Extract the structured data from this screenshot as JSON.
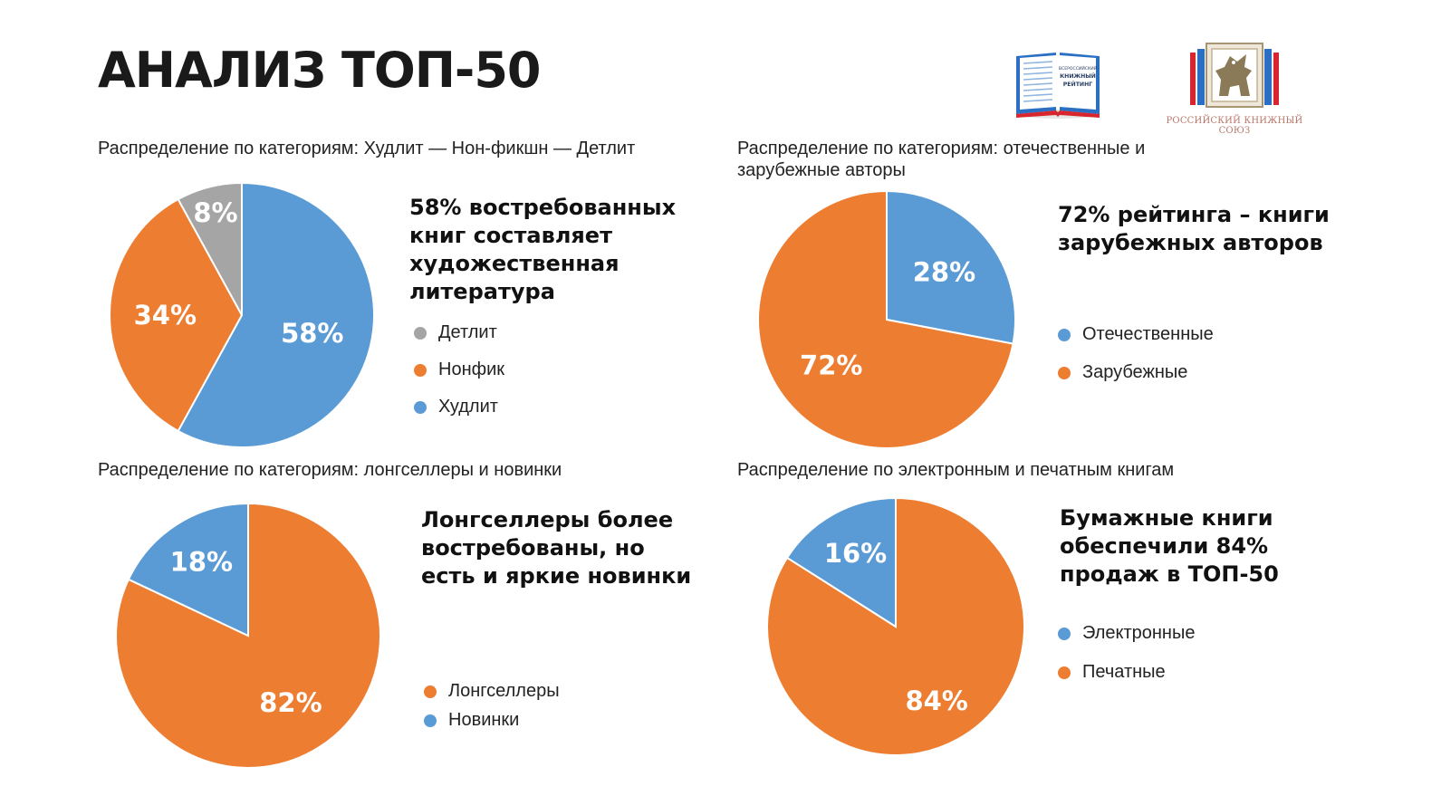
{
  "title": "АНАЛИЗ ТОП-50",
  "logos": {
    "rating_lines": [
      "ВСЕРОССИЙСКИЙ",
      "КНИЖНЫЙ",
      "РЕЙТИНГ"
    ],
    "union_caption": "РОССИЙСКИЙ КНИЖНЫЙ СОЮЗ"
  },
  "colors": {
    "blue": "#5b9bd5",
    "orange": "#ed7d31",
    "gray": "#a5a5a5"
  },
  "chart_data": [
    {
      "type": "pie",
      "title": "Распределение по категориям: Худлит — Нон-фикшн — Детлит",
      "headline": "58% востребованных книг составляет художественная литература",
      "slices": [
        {
          "name": "Худлит",
          "value": 58,
          "label": "58%",
          "color": "#5b9bd5"
        },
        {
          "name": "Нонфик",
          "value": 34,
          "label": "34%",
          "color": "#ed7d31"
        },
        {
          "name": "Детлит",
          "value": 8,
          "label": "8%",
          "color": "#a5a5a5"
        }
      ],
      "legend": [
        {
          "label": "Детлит",
          "color": "#a5a5a5"
        },
        {
          "label": "Нонфик",
          "color": "#ed7d31"
        },
        {
          "label": "Худлит",
          "color": "#5b9bd5"
        }
      ]
    },
    {
      "type": "pie",
      "title": "Распределение по категориям: отечественные и зарубежные авторы",
      "headline": "72% рейтинга – книги зарубежных авторов",
      "slices": [
        {
          "name": "Отечественные",
          "value": 28,
          "label": "28%",
          "color": "#5b9bd5"
        },
        {
          "name": "Зарубежные",
          "value": 72,
          "label": "72%",
          "color": "#ed7d31"
        }
      ],
      "legend": [
        {
          "label": "Отечественные",
          "color": "#5b9bd5"
        },
        {
          "label": "Зарубежные",
          "color": "#ed7d31"
        }
      ]
    },
    {
      "type": "pie",
      "title": "Распределение по категориям: лонгселлеры и новинки",
      "headline": "Лонгселлеры более востребованы, но есть и яркие новинки",
      "slices": [
        {
          "name": "Лонгселлеры",
          "value": 82,
          "label": "82%",
          "color": "#ed7d31"
        },
        {
          "name": "Новинки",
          "value": 18,
          "label": "18%",
          "color": "#5b9bd5"
        }
      ],
      "legend": [
        {
          "label": "Лонгселлеры",
          "color": "#ed7d31"
        },
        {
          "label": "Новинки",
          "color": "#5b9bd5"
        }
      ]
    },
    {
      "type": "pie",
      "title": "Распределение по электронным и печатным книгам",
      "headline": "Бумажные книги обеспечили 84% продаж в ТОП-50",
      "slices": [
        {
          "name": "Печатные",
          "value": 84,
          "label": "84%",
          "color": "#ed7d31"
        },
        {
          "name": "Электронные",
          "value": 16,
          "label": "16%",
          "color": "#5b9bd5"
        }
      ],
      "legend": [
        {
          "label": "Электронные",
          "color": "#5b9bd5"
        },
        {
          "label": "Печатные",
          "color": "#ed7d31"
        }
      ]
    }
  ]
}
